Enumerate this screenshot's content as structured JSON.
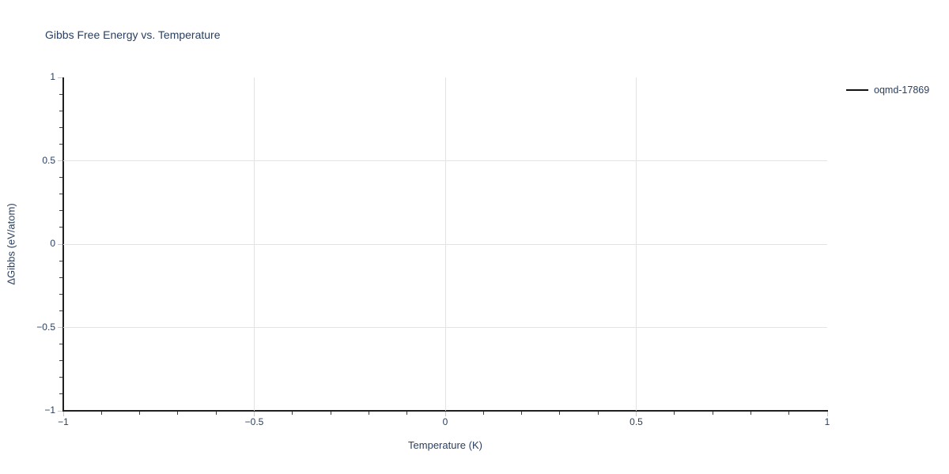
{
  "chart": {
    "title": "Gibbs Free Energy vs. Temperature",
    "xlabel": "Temperature (K)",
    "ylabel": "ΔGibbs (eV/atom)",
    "x_tick_labels": [
      "−1",
      "−0.5",
      "0",
      "0.5",
      "1"
    ],
    "y_tick_labels": [
      "−1",
      "−0.5",
      "0",
      "0.5",
      "1"
    ],
    "legend": {
      "items": [
        {
          "label": "oqmd-17869",
          "swatch_color": "#111111"
        }
      ]
    }
  },
  "chart_data": {
    "type": "line",
    "title": "Gibbs Free Energy vs. Temperature",
    "xlabel": "Temperature (K)",
    "ylabel": "ΔGibbs (eV/atom)",
    "xlim": [
      -1,
      1
    ],
    "ylim": [
      -1,
      1
    ],
    "x_major_ticks": [
      -1,
      -0.5,
      0,
      0.5,
      1
    ],
    "y_major_ticks": [
      -1,
      -0.5,
      0,
      0.5,
      1
    ],
    "minor_tick_step": 0.1,
    "grid": "major-only",
    "legend_position": "top-right-outside",
    "series": [
      {
        "name": "oqmd-17869",
        "color": "#111111",
        "x": [],
        "y": []
      }
    ],
    "colors": {
      "background": "#ffffff",
      "text": "#2a3f5f",
      "axis_line": "#1f1f1f",
      "gridline": "#e3e3e3",
      "major_tick": "#c9c9c9",
      "minor_tick": "#3a3a3a"
    }
  }
}
